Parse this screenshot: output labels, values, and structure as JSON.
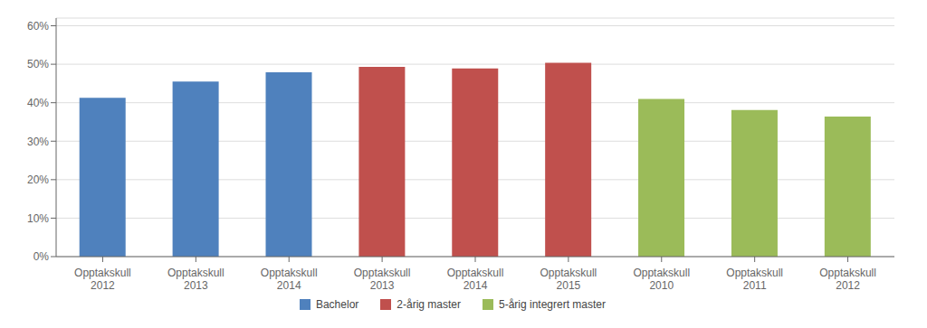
{
  "chart_data": {
    "type": "bar",
    "categories": [
      "Opptakskull\n2012",
      "Opptakskull\n2013",
      "Opptakskull\n2014",
      "Opptakskull\n2013",
      "Opptakskull\n2014",
      "Opptakskull\n2015",
      "Opptakskull\n2010",
      "Opptakskull\n2011",
      "Opptakskull\n2012"
    ],
    "series": [
      {
        "name": "Bachelor",
        "color": "#4F81BD",
        "values": [
          0.413,
          0.455,
          0.479,
          null,
          null,
          null,
          null,
          null,
          null
        ]
      },
      {
        "name": "2-årig master",
        "color": "#C0504D",
        "values": [
          null,
          null,
          null,
          0.493,
          0.489,
          0.504,
          null,
          null,
          null
        ]
      },
      {
        "name": "5-årig integrert master",
        "color": "#9BBB59",
        "values": [
          null,
          null,
          null,
          null,
          null,
          null,
          0.41,
          0.381,
          0.364
        ]
      }
    ],
    "ylim": [
      0,
      0.62
    ],
    "yticks": [
      {
        "value": 0.0,
        "label": "0%"
      },
      {
        "value": 0.1,
        "label": "10%"
      },
      {
        "value": 0.2,
        "label": "20%"
      },
      {
        "value": 0.3,
        "label": "30%"
      },
      {
        "value": 0.4,
        "label": "40%"
      },
      {
        "value": 0.5,
        "label": "50%"
      },
      {
        "value": 0.6,
        "label": "60%"
      }
    ],
    "grid": true,
    "legend": "bottom"
  }
}
